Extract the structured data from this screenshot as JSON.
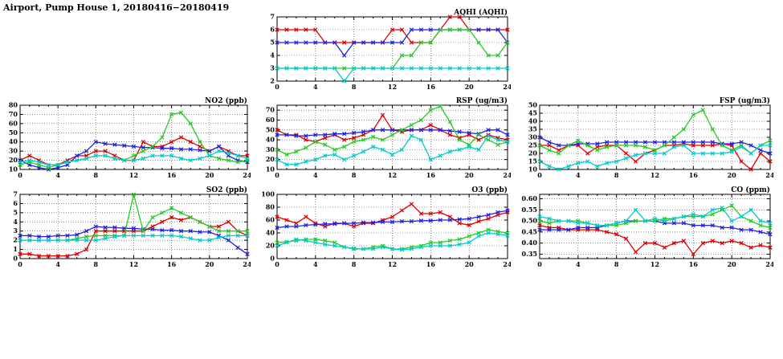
{
  "title": "Airport, Pump House 1, 20180416−20180419",
  "x_hours": [
    0,
    1,
    2,
    3,
    4,
    5,
    6,
    7,
    8,
    9,
    10,
    11,
    12,
    13,
    14,
    15,
    16,
    17,
    18,
    19,
    20,
    21,
    22,
    23,
    24
  ],
  "colors": {
    "red": "#dd0000",
    "blue": "#2222dd",
    "green": "#22cc22",
    "cyan": "#00cccc"
  },
  "chart_data": [
    {
      "type": "line",
      "title": "AQHI (AQHI)",
      "xlim": [
        0,
        24
      ],
      "xticks": [
        0,
        4,
        8,
        12,
        16,
        20,
        24
      ],
      "ylim": [
        2,
        7
      ],
      "yticks": [
        2,
        3,
        4,
        5,
        6,
        7
      ],
      "ytick_labels": [
        "2",
        "3",
        "4",
        "5",
        "6",
        "7"
      ],
      "grid": true,
      "series": [
        {
          "name": "series-red",
          "color": "#dd0000",
          "values": [
            6,
            6,
            6,
            6,
            6,
            5,
            5,
            5,
            5,
            5,
            5,
            5,
            6,
            6,
            5,
            5,
            5,
            6,
            7,
            7,
            6,
            6,
            6,
            6,
            6
          ]
        },
        {
          "name": "series-blue",
          "color": "#2222dd",
          "values": [
            5,
            5,
            5,
            5,
            5,
            5,
            5,
            4,
            5,
            5,
            5,
            5,
            5,
            5,
            6,
            6,
            6,
            6,
            6,
            6,
            6,
            6,
            6,
            6,
            5
          ]
        },
        {
          "name": "series-green",
          "color": "#22cc22",
          "values": [
            3,
            3,
            3,
            3,
            3,
            3,
            3,
            3,
            3,
            3,
            3,
            3,
            3,
            4,
            4,
            5,
            5,
            6,
            6,
            6,
            6,
            5,
            4,
            4,
            5
          ]
        },
        {
          "name": "series-cyan",
          "color": "#00cccc",
          "values": [
            3,
            3,
            3,
            3,
            3,
            3,
            3,
            2,
            3,
            3,
            3,
            3,
            3,
            3,
            3,
            3,
            3,
            3,
            3,
            3,
            3,
            3,
            3,
            3,
            3
          ]
        }
      ]
    },
    {
      "type": "line",
      "title": "NO2 (ppb)",
      "xlim": [
        0,
        24
      ],
      "xticks": [
        0,
        4,
        8,
        12,
        16,
        20,
        24
      ],
      "ylim": [
        10,
        80
      ],
      "yticks": [
        10,
        20,
        30,
        40,
        50,
        60,
        70,
        80
      ],
      "ytick_labels": [
        "10",
        "20",
        "30",
        "40",
        "50",
        "60",
        "70",
        "80"
      ],
      "grid": true,
      "series": [
        {
          "name": "series-red",
          "color": "#dd0000",
          "values": [
            20,
            25,
            20,
            15,
            15,
            20,
            25,
            25,
            30,
            30,
            25,
            20,
            20,
            40,
            35,
            35,
            40,
            45,
            40,
            35,
            30,
            35,
            30,
            25,
            25
          ]
        },
        {
          "name": "series-blue",
          "color": "#2222dd",
          "values": [
            20,
            15,
            12,
            10,
            12,
            15,
            25,
            30,
            40,
            38,
            37,
            36,
            35,
            34,
            34,
            33,
            33,
            32,
            32,
            31,
            30,
            35,
            25,
            20,
            18
          ]
        },
        {
          "name": "series-green",
          "color": "#22cc22",
          "values": [
            15,
            18,
            15,
            12,
            15,
            18,
            20,
            22,
            25,
            25,
            22,
            20,
            25,
            30,
            35,
            45,
            70,
            72,
            60,
            40,
            25,
            22,
            20,
            18,
            20
          ]
        },
        {
          "name": "series-cyan",
          "color": "#00cccc",
          "values": [
            18,
            20,
            18,
            15,
            15,
            18,
            20,
            22,
            25,
            25,
            22,
            20,
            20,
            22,
            25,
            25,
            25,
            22,
            20,
            22,
            25,
            30,
            28,
            25,
            22
          ]
        }
      ]
    },
    {
      "type": "line",
      "title": "RSP (ug/m3)",
      "xlim": [
        0,
        24
      ],
      "xticks": [
        0,
        4,
        8,
        12,
        16,
        20,
        24
      ],
      "ylim": [
        10,
        75
      ],
      "yticks": [
        10,
        20,
        30,
        40,
        50,
        60,
        70
      ],
      "ytick_labels": [
        "10",
        "20",
        "30",
        "40",
        "50",
        "60",
        "70"
      ],
      "grid": true,
      "series": [
        {
          "name": "series-red",
          "color": "#dd0000",
          "values": [
            50,
            45,
            45,
            40,
            38,
            42,
            45,
            40,
            42,
            45,
            50,
            65,
            50,
            48,
            50,
            50,
            55,
            50,
            45,
            42,
            45,
            40,
            45,
            42,
            40
          ]
        },
        {
          "name": "series-blue",
          "color": "#2222dd",
          "values": [
            45,
            45,
            44,
            44,
            45,
            45,
            46,
            46,
            47,
            48,
            50,
            50,
            50,
            50,
            50,
            50,
            50,
            50,
            49,
            48,
            47,
            46,
            50,
            50,
            45
          ]
        },
        {
          "name": "series-green",
          "color": "#22cc22",
          "values": [
            30,
            25,
            28,
            32,
            38,
            35,
            30,
            33,
            38,
            40,
            43,
            40,
            45,
            50,
            55,
            60,
            70,
            74,
            58,
            40,
            35,
            45,
            40,
            35,
            38
          ]
        },
        {
          "name": "series-cyan",
          "color": "#00cccc",
          "values": [
            20,
            15,
            15,
            18,
            20,
            24,
            25,
            20,
            24,
            28,
            33,
            30,
            25,
            30,
            44,
            40,
            20,
            24,
            28,
            30,
            33,
            30,
            44,
            40,
            38
          ]
        }
      ]
    },
    {
      "type": "line",
      "title": "FSP (ug/m3)",
      "xlim": [
        0,
        24
      ],
      "xticks": [
        0,
        4,
        8,
        12,
        16,
        20,
        24
      ],
      "ylim": [
        10,
        50
      ],
      "yticks": [
        10,
        15,
        20,
        25,
        30,
        35,
        40,
        45,
        50
      ],
      "ytick_labels": [
        "10",
        "15",
        "20",
        "25",
        "30",
        "35",
        "40",
        "45",
        "50"
      ],
      "grid": true,
      "series": [
        {
          "name": "series-red",
          "color": "#dd0000",
          "values": [
            25,
            25,
            22,
            25,
            25,
            20,
            24,
            25,
            25,
            20,
            15,
            20,
            22,
            25,
            25,
            26,
            25,
            25,
            25,
            26,
            25,
            15,
            10,
            20,
            15
          ]
        },
        {
          "name": "series-blue",
          "color": "#2222dd",
          "values": [
            30,
            27,
            25,
            25,
            26,
            26,
            26,
            27,
            27,
            27,
            27,
            27,
            27,
            27,
            27,
            27,
            27,
            27,
            27,
            26,
            26,
            27,
            25,
            22,
            20
          ]
        },
        {
          "name": "series-green",
          "color": "#22cc22",
          "values": [
            25,
            22,
            20,
            25,
            28,
            25,
            22,
            24,
            25,
            25,
            25,
            24,
            22,
            25,
            30,
            35,
            44,
            47,
            35,
            25,
            22,
            25,
            20,
            25,
            28
          ]
        },
        {
          "name": "series-cyan",
          "color": "#00cccc",
          "values": [
            15,
            12,
            10,
            12,
            14,
            15,
            12,
            14,
            15,
            17,
            19,
            20,
            20,
            20,
            24,
            25,
            20,
            20,
            20,
            20,
            21,
            24,
            20,
            25,
            25
          ]
        }
      ]
    },
    {
      "type": "line",
      "title": "SO2 (ppb)",
      "xlim": [
        0,
        24
      ],
      "xticks": [
        0,
        4,
        8,
        12,
        16,
        20,
        24
      ],
      "ylim": [
        0,
        7
      ],
      "yticks": [
        0,
        1,
        2,
        3,
        4,
        5,
        6,
        7
      ],
      "ytick_labels": [
        "0",
        "1",
        "2",
        "3",
        "4",
        "5",
        "6",
        "7"
      ],
      "grid": true,
      "series": [
        {
          "name": "series-red",
          "color": "#dd0000",
          "values": [
            0.5,
            0.5,
            0.3,
            0.3,
            0.3,
            0.3,
            0.5,
            1.0,
            3.0,
            3.0,
            3.0,
            3.0,
            3.0,
            3.0,
            3.5,
            4.0,
            4.5,
            4.2,
            4.5,
            4.0,
            3.5,
            3.5,
            4.0,
            3.0,
            2.5
          ]
        },
        {
          "name": "series-blue",
          "color": "#2222dd",
          "values": [
            2.5,
            2.5,
            2.4,
            2.4,
            2.5,
            2.5,
            2.6,
            3.0,
            3.5,
            3.4,
            3.4,
            3.3,
            3.3,
            3.2,
            3.2,
            3.1,
            3.1,
            3.0,
            3.0,
            2.9,
            2.9,
            2.5,
            2.0,
            1.2,
            0.5
          ]
        },
        {
          "name": "series-green",
          "color": "#22cc22",
          "values": [
            2.0,
            2.0,
            2.0,
            2.0,
            2.0,
            2.0,
            2.2,
            2.4,
            2.5,
            2.5,
            2.5,
            2.5,
            7.0,
            3.0,
            4.5,
            5.0,
            5.5,
            5.0,
            4.5,
            4.0,
            3.5,
            3.0,
            3.0,
            3.0,
            3.0
          ]
        },
        {
          "name": "series-cyan",
          "color": "#00cccc",
          "values": [
            2.0,
            2.0,
            2.0,
            2.0,
            2.0,
            2.0,
            2.0,
            2.0,
            2.0,
            2.2,
            2.4,
            2.5,
            2.5,
            2.5,
            2.5,
            2.5,
            2.5,
            2.4,
            2.2,
            2.0,
            2.0,
            2.3,
            2.5,
            2.5,
            2.5
          ]
        }
      ]
    },
    {
      "type": "line",
      "title": "O3 (ppb)",
      "xlim": [
        0,
        24
      ],
      "xticks": [
        0,
        4,
        8,
        12,
        16,
        20,
        24
      ],
      "ylim": [
        0,
        100
      ],
      "yticks": [
        0,
        20,
        40,
        60,
        80,
        100
      ],
      "ytick_labels": [
        "0",
        "20",
        "40",
        "60",
        "80",
        "100"
      ],
      "grid": true,
      "series": [
        {
          "name": "series-red",
          "color": "#dd0000",
          "values": [
            65,
            60,
            55,
            65,
            55,
            50,
            55,
            55,
            50,
            55,
            55,
            60,
            65,
            75,
            85,
            70,
            70,
            72,
            65,
            55,
            52,
            58,
            62,
            68,
            72
          ]
        },
        {
          "name": "series-blue",
          "color": "#2222dd",
          "values": [
            48,
            50,
            50,
            52,
            53,
            54,
            54,
            55,
            55,
            56,
            56,
            57,
            57,
            58,
            58,
            59,
            59,
            60,
            60,
            61,
            62,
            65,
            68,
            72,
            75
          ]
        },
        {
          "name": "series-green",
          "color": "#22cc22",
          "values": [
            25,
            26,
            28,
            30,
            30,
            28,
            25,
            18,
            15,
            15,
            18,
            20,
            15,
            15,
            18,
            20,
            25,
            25,
            28,
            30,
            35,
            40,
            45,
            42,
            40
          ]
        },
        {
          "name": "series-cyan",
          "color": "#00cccc",
          "values": [
            20,
            25,
            30,
            28,
            25,
            22,
            20,
            18,
            16,
            15,
            15,
            18,
            15,
            14,
            15,
            18,
            20,
            20,
            20,
            22,
            25,
            35,
            40,
            38,
            36
          ]
        }
      ]
    },
    {
      "type": "line",
      "title": "CO (ppm)",
      "xlim": [
        0,
        24
      ],
      "xticks": [
        0,
        4,
        8,
        12,
        16,
        20,
        24
      ],
      "ylim": [
        0.33,
        0.62
      ],
      "yticks": [
        0.35,
        0.4,
        0.45,
        0.5,
        0.55,
        0.6
      ],
      "ytick_labels": [
        "0.35",
        "0.40",
        "0.45",
        "0.50",
        "0.55",
        "0.60"
      ],
      "grid": true,
      "series": [
        {
          "name": "series-red",
          "color": "#dd0000",
          "values": [
            0.48,
            0.47,
            0.47,
            0.46,
            0.46,
            0.46,
            0.46,
            0.45,
            0.44,
            0.42,
            0.36,
            0.4,
            0.4,
            0.38,
            0.4,
            0.41,
            0.35,
            0.4,
            0.41,
            0.4,
            0.41,
            0.4,
            0.38,
            0.39,
            0.38
          ]
        },
        {
          "name": "series-blue",
          "color": "#2222dd",
          "values": [
            0.46,
            0.46,
            0.46,
            0.46,
            0.47,
            0.47,
            0.47,
            0.48,
            0.49,
            0.5,
            0.5,
            0.5,
            0.5,
            0.49,
            0.49,
            0.49,
            0.48,
            0.48,
            0.48,
            0.47,
            0.47,
            0.46,
            0.46,
            0.45,
            0.44
          ]
        },
        {
          "name": "series-green",
          "color": "#22cc22",
          "values": [
            0.5,
            0.49,
            0.5,
            0.5,
            0.5,
            0.49,
            0.48,
            0.48,
            0.48,
            0.49,
            0.5,
            0.5,
            0.5,
            0.51,
            0.51,
            0.52,
            0.52,
            0.52,
            0.53,
            0.55,
            0.57,
            0.52,
            0.5,
            0.48,
            0.47
          ]
        },
        {
          "name": "series-cyan",
          "color": "#00cccc",
          "values": [
            0.52,
            0.51,
            0.5,
            0.5,
            0.49,
            0.49,
            0.48,
            0.48,
            0.49,
            0.5,
            0.55,
            0.5,
            0.51,
            0.5,
            0.51,
            0.52,
            0.53,
            0.52,
            0.55,
            0.56,
            0.5,
            0.52,
            0.55,
            0.5,
            0.49
          ]
        }
      ]
    }
  ]
}
